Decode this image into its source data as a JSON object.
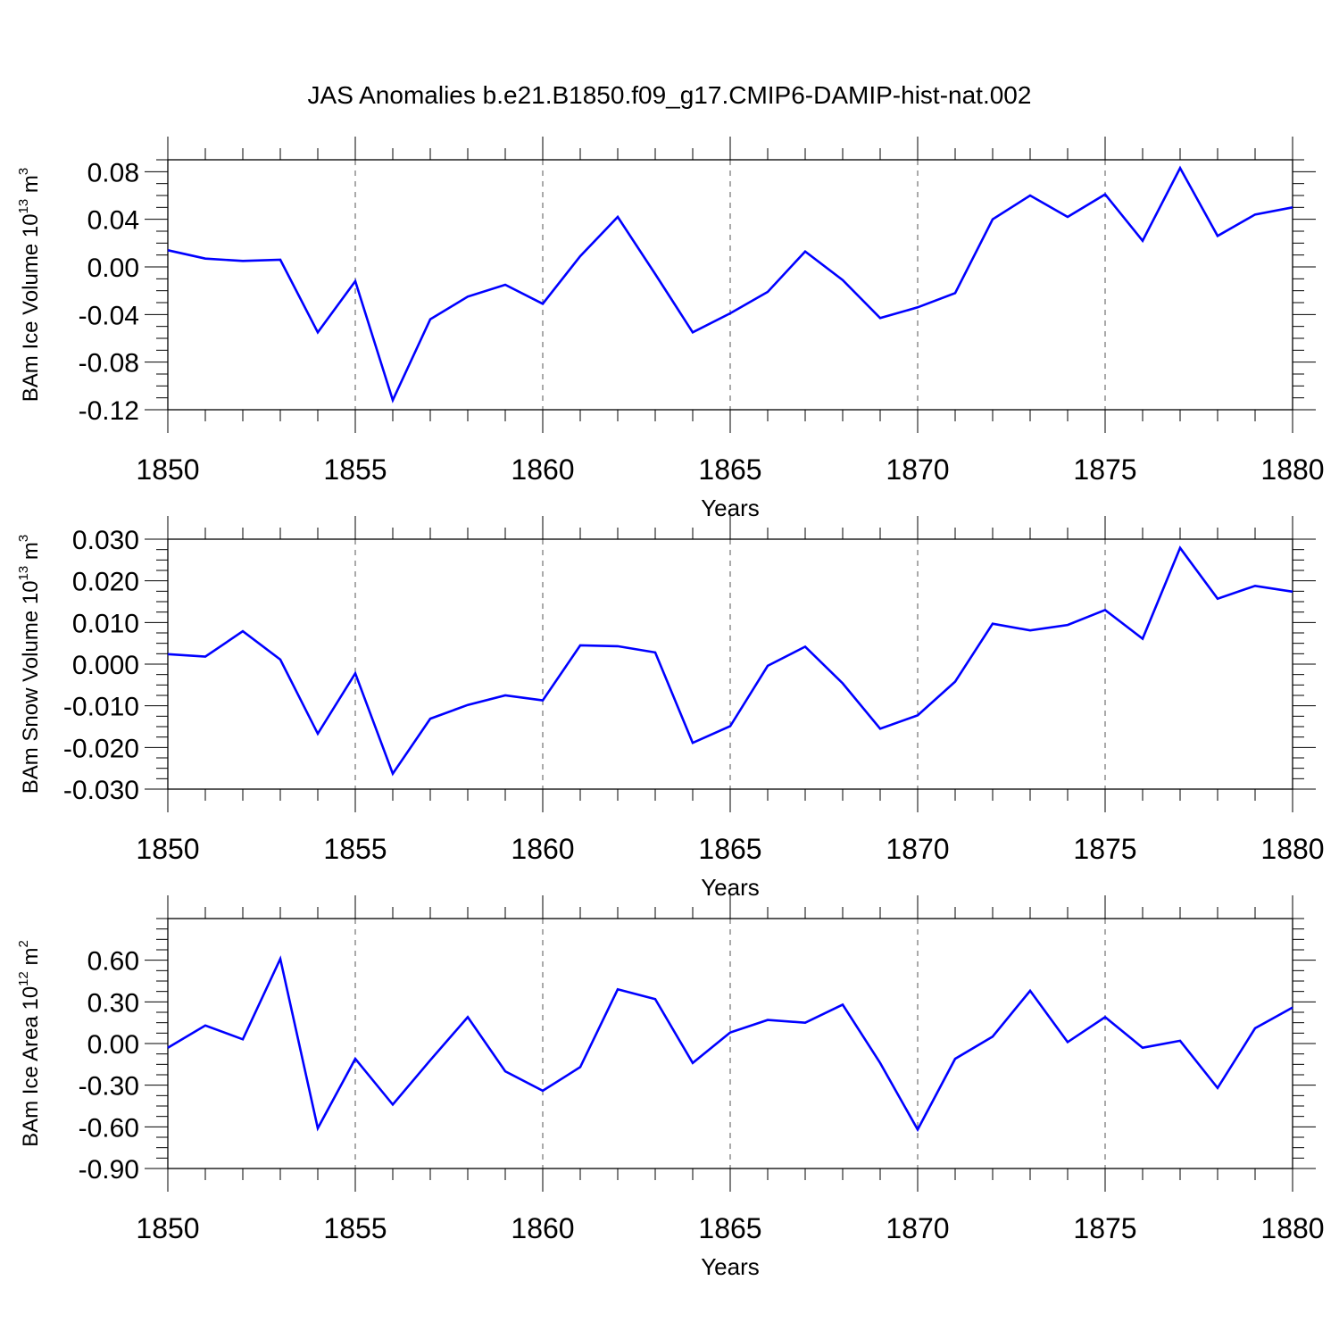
{
  "chart_data": {
    "title": "JAS Anomalies b.e21.B1850.f09_g17.CMIP6-DAMIP-hist-nat.002",
    "panels": [
      {
        "type": "line",
        "ylabel": "BAm Ice Volume 10",
        "ylabel_exp": "13",
        "ylabel_unit": " m",
        "ylabel_unit_exp": "3",
        "xlabel": "Years",
        "xlim": [
          1850,
          1880
        ],
        "ylim": [
          -0.12,
          0.09
        ],
        "x_ticks": [
          "1850",
          "1855",
          "1860",
          "1865",
          "1870",
          "1875",
          "1880"
        ],
        "y_ticks": [
          "0.08",
          "0.04",
          "0.00",
          "-0.04",
          "-0.08",
          "-0.12"
        ],
        "y_tick_values": [
          0.08,
          0.04,
          0.0,
          -0.04,
          -0.08,
          -0.12
        ],
        "x": [
          1850,
          1851,
          1852,
          1853,
          1854,
          1855,
          1856,
          1857,
          1858,
          1859,
          1860,
          1861,
          1862,
          1863,
          1864,
          1865,
          1866,
          1867,
          1868,
          1869,
          1870,
          1871,
          1872,
          1873,
          1874,
          1875,
          1876,
          1877,
          1878,
          1879,
          1880
        ],
        "y": [
          0.014,
          0.007,
          0.005,
          0.006,
          -0.055,
          -0.012,
          -0.112,
          -0.044,
          -0.025,
          -0.015,
          -0.031,
          0.009,
          0.042,
          -0.006,
          -0.055,
          -0.039,
          -0.021,
          0.013,
          -0.011,
          -0.043,
          -0.034,
          -0.022,
          0.04,
          0.06,
          0.042,
          0.061,
          0.022,
          0.083,
          0.026,
          0.044,
          0.05
        ],
        "color": "#0000ff",
        "grid": "vertical dashed at major x ticks"
      },
      {
        "type": "line",
        "ylabel": "BAm Snow Volume 10",
        "ylabel_exp": "13",
        "ylabel_unit": " m",
        "ylabel_unit_exp": "3",
        "xlabel": "Years",
        "xlim": [
          1850,
          1880
        ],
        "ylim": [
          -0.03,
          0.03
        ],
        "x_ticks": [
          "1850",
          "1855",
          "1860",
          "1865",
          "1870",
          "1875",
          "1880"
        ],
        "y_ticks": [
          "0.030",
          "0.020",
          "0.010",
          "0.000",
          "-0.010",
          "-0.020",
          "-0.030"
        ],
        "y_tick_values": [
          0.03,
          0.02,
          0.01,
          0.0,
          -0.01,
          -0.02,
          -0.03
        ],
        "x": [
          1850,
          1851,
          1852,
          1853,
          1854,
          1855,
          1856,
          1857,
          1858,
          1859,
          1860,
          1861,
          1862,
          1863,
          1864,
          1865,
          1866,
          1867,
          1868,
          1869,
          1870,
          1871,
          1872,
          1873,
          1874,
          1875,
          1876,
          1877,
          1878,
          1879,
          1880
        ],
        "y": [
          0.0024,
          0.0018,
          0.0079,
          0.0011,
          -0.0167,
          -0.0022,
          -0.0263,
          -0.0131,
          -0.0098,
          -0.0075,
          -0.0087,
          0.0045,
          0.0043,
          0.0028,
          -0.0189,
          -0.0149,
          -0.0004,
          0.0042,
          -0.0046,
          -0.0155,
          -0.0123,
          -0.0042,
          0.0097,
          0.0081,
          0.0094,
          0.013,
          0.0061,
          0.0279,
          0.0157,
          0.0188,
          0.0174
        ],
        "color": "#0000ff",
        "grid": "vertical dashed at major x ticks"
      },
      {
        "type": "line",
        "ylabel": "BAm Ice Area 10",
        "ylabel_exp": "12",
        "ylabel_unit": " m",
        "ylabel_unit_exp": "2",
        "xlabel": "Years",
        "xlim": [
          1850,
          1880
        ],
        "ylim": [
          -0.9,
          0.9
        ],
        "x_ticks": [
          "1850",
          "1855",
          "1860",
          "1865",
          "1870",
          "1875",
          "1880"
        ],
        "y_ticks": [
          "0.60",
          "0.30",
          "0.00",
          "-0.30",
          "-0.60",
          "-0.90"
        ],
        "y_tick_values": [
          0.6,
          0.3,
          0.0,
          -0.3,
          -0.6,
          -0.9
        ],
        "x": [
          1850,
          1851,
          1852,
          1853,
          1854,
          1855,
          1856,
          1857,
          1858,
          1859,
          1860,
          1861,
          1862,
          1863,
          1864,
          1865,
          1866,
          1867,
          1868,
          1869,
          1870,
          1871,
          1872,
          1873,
          1874,
          1875,
          1876,
          1877,
          1878,
          1879,
          1880
        ],
        "y": [
          -0.03,
          0.13,
          0.03,
          0.61,
          -0.61,
          -0.11,
          -0.44,
          -0.12,
          0.19,
          -0.2,
          -0.34,
          -0.17,
          0.39,
          0.32,
          -0.14,
          0.08,
          0.17,
          0.15,
          0.28,
          -0.14,
          -0.62,
          -0.11,
          0.05,
          0.38,
          0.01,
          0.19,
          -0.03,
          0.02,
          -0.32,
          0.11,
          0.26
        ],
        "color": "#0000ff",
        "grid": "vertical dashed at major x ticks"
      }
    ]
  }
}
